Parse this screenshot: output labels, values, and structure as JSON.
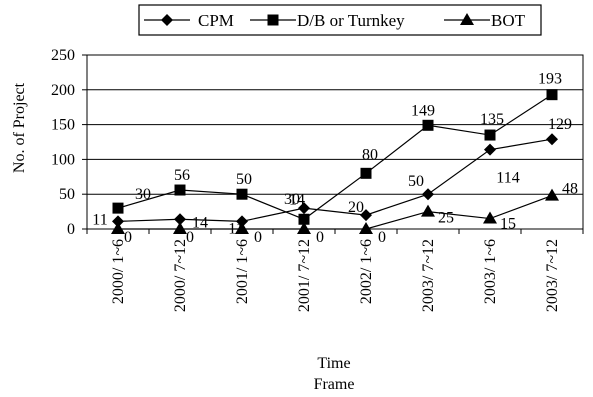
{
  "chart_data": {
    "type": "line",
    "title": "",
    "xlabel": "Time Frame",
    "xlabel_lines": [
      "Time",
      "Frame"
    ],
    "ylabel": "No. of Project",
    "ylim": [
      0,
      250
    ],
    "yticks": [
      "0",
      "50",
      "100",
      "150",
      "200",
      "250"
    ],
    "grid": "horizontal",
    "legend_position": "top",
    "categories": [
      "2000/ 1~6",
      "2000/ 7~12",
      "2001/ 1~6",
      "2001/ 7~12",
      "2002/ 1~6",
      "2003/ 7~12",
      "2003/ 1~6",
      "2003/ 7~12"
    ],
    "series": [
      {
        "name": "CPM",
        "marker": "diamond",
        "values": [
          11,
          14,
          11,
          30,
          20,
          50,
          114,
          129
        ],
        "labels": [
          "11",
          "14",
          "11",
          "30",
          "20",
          "50",
          "114",
          "129"
        ]
      },
      {
        "name": "D/B or Turnkey",
        "marker": "square",
        "values": [
          30,
          56,
          50,
          14,
          80,
          149,
          135,
          193
        ],
        "labels": [
          "30",
          "56",
          "50",
          "14",
          "80",
          "149",
          "135",
          "193"
        ]
      },
      {
        "name": "BOT",
        "marker": "triangle",
        "values": [
          0,
          0,
          0,
          0,
          0,
          25,
          15,
          48
        ],
        "labels": [
          "0",
          "0",
          "0",
          "0",
          "0",
          "25",
          "15",
          "48"
        ]
      }
    ]
  }
}
